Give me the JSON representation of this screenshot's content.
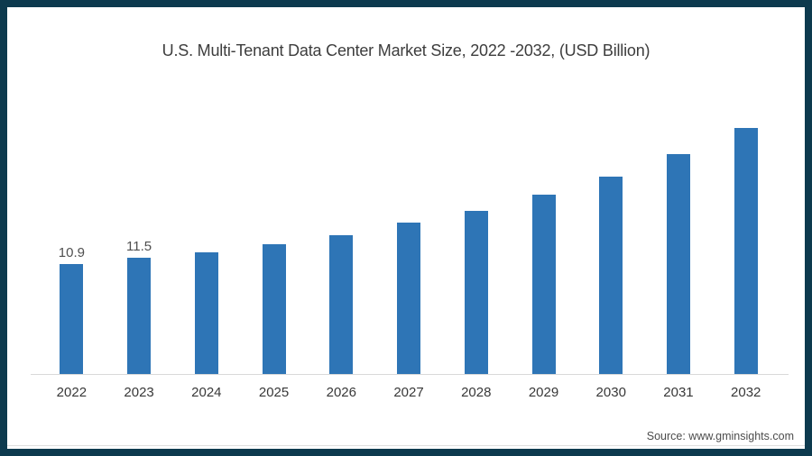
{
  "frame": {
    "border_color": "#0d3a4e",
    "background_color": "#ffffff"
  },
  "source": {
    "text": "Source: www.gminsights.com"
  },
  "chart_data": {
    "type": "bar",
    "title": "U.S. Multi-Tenant Data Center Market Size, 2022 -2032, (USD Billion)",
    "categories": [
      "2022",
      "2023",
      "2024",
      "2025",
      "2026",
      "2027",
      "2028",
      "2029",
      "2030",
      "2031",
      "2032"
    ],
    "values": [
      10.9,
      11.5,
      12.1,
      12.9,
      13.8,
      15.0,
      16.2,
      17.8,
      19.6,
      21.8,
      24.4
    ],
    "data_labels": [
      "10.9",
      "11.5",
      "",
      "",
      "",
      "",
      "",
      "",
      "",
      "",
      ""
    ],
    "xlabel": "",
    "ylabel": "",
    "ylim": [
      0,
      26
    ],
    "grid": false,
    "legend": false,
    "bar_color": "#2e75b6",
    "axis_line_color": "#d9d9d9"
  }
}
